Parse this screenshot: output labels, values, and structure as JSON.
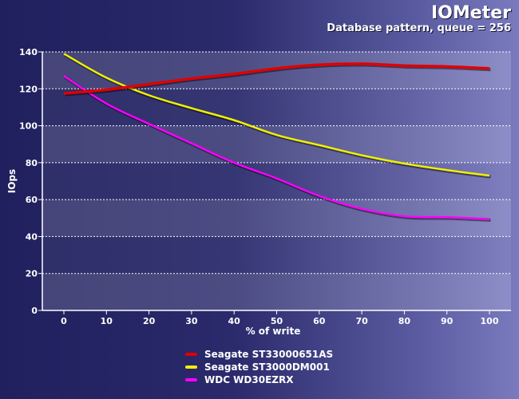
{
  "header": {
    "title": "IOMeter",
    "subtitle": "Database pattern, queue = 256"
  },
  "chart_data": {
    "type": "line",
    "xlabel": "% of write",
    "ylabel": "IOps",
    "xlim": [
      0,
      100
    ],
    "ylim": [
      0,
      140
    ],
    "xticks": [
      0,
      10,
      20,
      30,
      40,
      50,
      60,
      70,
      80,
      90,
      100
    ],
    "yticks": [
      0,
      20,
      40,
      60,
      80,
      100,
      120,
      140
    ],
    "grid": "horizontal dotted",
    "legend_position": "bottom",
    "x": [
      0,
      10,
      20,
      30,
      40,
      50,
      60,
      70,
      80,
      90,
      100
    ],
    "series": [
      {
        "name": "Seagate ST33000651AS",
        "color": "#e00000",
        "values": [
          117.5,
          119.5,
          122.5,
          125.5,
          128,
          131,
          133,
          133.5,
          132.5,
          132,
          131
        ]
      },
      {
        "name": "Seagate ST3000DM001",
        "color": "#f0f000",
        "values": [
          139,
          126,
          116.5,
          109.5,
          103,
          95,
          89.5,
          84,
          79.5,
          76,
          73
        ]
      },
      {
        "name": "WDC WD30EZRX",
        "color": "#ff00ff",
        "values": [
          127,
          112,
          101,
          90.5,
          80,
          71.5,
          62,
          55,
          51,
          50.5,
          49.5
        ]
      }
    ]
  }
}
